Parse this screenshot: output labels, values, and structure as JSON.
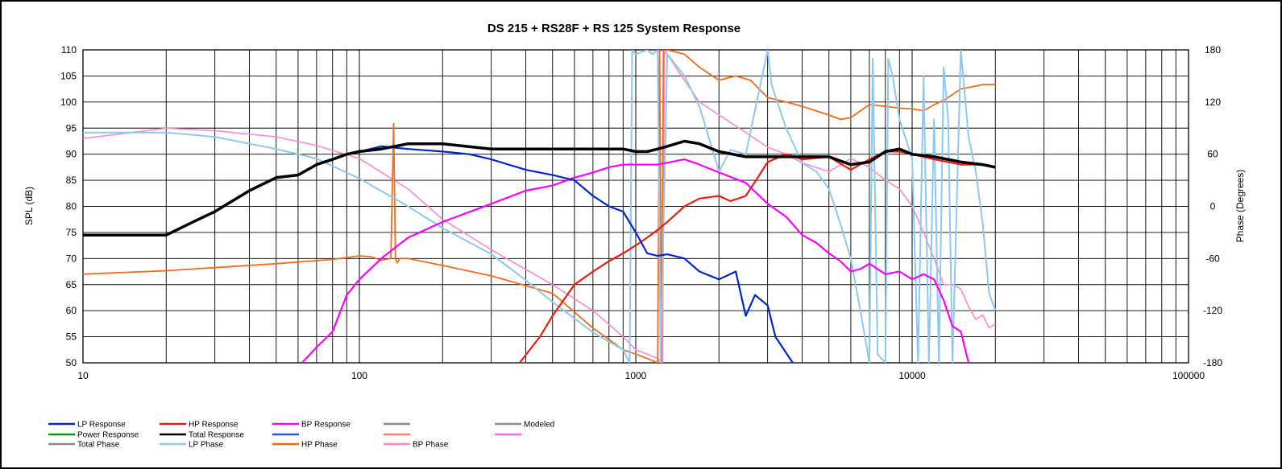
{
  "chart_data": {
    "type": "line",
    "title": "DS 215 + RS28F + RS 125  System Response",
    "xlabel": "",
    "ylabel": "SPL (dB)",
    "y2label": "Phase (Degrees)",
    "xscale": "log",
    "xlim": [
      10,
      100000
    ],
    "ylim": [
      50,
      110
    ],
    "y2lim": [
      -180,
      180
    ],
    "grid": true,
    "legend_position": "bottom",
    "x_ticks": [
      {
        "value": 10,
        "label": "10"
      },
      {
        "value": 100,
        "label": "100"
      },
      {
        "value": 1000,
        "label": "1000"
      },
      {
        "value": 10000,
        "label": "10000"
      },
      {
        "value": 100000,
        "label": "100000"
      }
    ],
    "y_ticks": [
      {
        "value": 50,
        "label": "50"
      },
      {
        "value": 55,
        "label": "55"
      },
      {
        "value": 60,
        "label": "60"
      },
      {
        "value": 65,
        "label": "65"
      },
      {
        "value": 70,
        "label": "70"
      },
      {
        "value": 75,
        "label": "75"
      },
      {
        "value": 80,
        "label": "80"
      },
      {
        "value": 85,
        "label": "85"
      },
      {
        "value": 90,
        "label": "90"
      },
      {
        "value": 95,
        "label": "95"
      },
      {
        "value": 100,
        "label": "100"
      },
      {
        "value": 105,
        "label": "105"
      },
      {
        "value": 110,
        "label": "110"
      }
    ],
    "y2_ticks": [
      {
        "value": -180,
        "label": "-180"
      },
      {
        "value": -120,
        "label": "-120"
      },
      {
        "value": -60,
        "label": "-60"
      },
      {
        "value": 0,
        "label": "0"
      },
      {
        "value": 60,
        "label": "60"
      },
      {
        "value": 120,
        "label": "120"
      },
      {
        "value": 180,
        "label": "180"
      }
    ],
    "series": [
      {
        "name": "Total Response",
        "color": "#000000",
        "width": 3.5,
        "axis": "left",
        "x": [
          10,
          20,
          25,
          30,
          40,
          50,
          60,
          70,
          80,
          90,
          100,
          120,
          150,
          200,
          300,
          400,
          500,
          600,
          700,
          800,
          900,
          1000,
          1100,
          1200,
          1300,
          1500,
          1700,
          2000,
          2500,
          3000,
          3500,
          4000,
          5000,
          6000,
          7000,
          8000,
          9000,
          10000,
          12000,
          15000,
          18000,
          20000
        ],
        "y": [
          74.5,
          74.5,
          77,
          79,
          83,
          85.5,
          86,
          88,
          89,
          90,
          90.5,
          91,
          92,
          92,
          91,
          91,
          91,
          91,
          91,
          91,
          91,
          90.5,
          90.5,
          91,
          91.5,
          92.5,
          92,
          90.5,
          89.5,
          89.5,
          89.5,
          89.5,
          89.5,
          88,
          88.5,
          90.5,
          91,
          90,
          89.5,
          88.5,
          88,
          87.5
        ]
      },
      {
        "name": "LP Response",
        "color": "#0026c8",
        "width": 2.2,
        "axis": "left",
        "x": [
          100,
          120,
          150,
          200,
          250,
          300,
          400,
          500,
          600,
          700,
          800,
          900,
          1000,
          1100,
          1200,
          1300,
          1500,
          1700,
          2000,
          2300,
          2500,
          2700,
          3000,
          3200,
          3700
        ],
        "y": [
          90.5,
          91.5,
          91,
          90.5,
          90,
          89,
          87,
          86,
          85,
          82,
          80,
          79,
          75,
          71,
          70.5,
          70.8,
          70,
          67.5,
          66,
          67.5,
          59,
          63,
          61,
          55,
          50
        ]
      },
      {
        "name": "HP Response",
        "color": "#ee1c10",
        "width": 2.2,
        "axis": "left",
        "x": [
          380,
          450,
          500,
          600,
          700,
          800,
          900,
          1000,
          1100,
          1200,
          1300,
          1500,
          1700,
          2000,
          2200,
          2500,
          2800,
          3000,
          3500,
          4000,
          5000,
          6000,
          7000,
          8000,
          9000,
          10000,
          12000,
          15000,
          18000,
          20000
        ],
        "y": [
          50,
          55,
          59,
          65,
          67.5,
          69.5,
          71,
          72.5,
          74,
          75.5,
          77,
          80,
          81.5,
          82,
          81,
          82,
          86,
          88.5,
          90,
          89,
          89.5,
          87,
          89,
          90.5,
          90.5,
          90,
          89,
          88,
          88,
          87.5
        ]
      },
      {
        "name": "BP Response",
        "color": "#ff00ff",
        "width": 2.2,
        "axis": "left",
        "x": [
          62,
          70,
          80,
          90,
          100,
          120,
          150,
          200,
          300,
          400,
          500,
          600,
          700,
          800,
          900,
          1000,
          1200,
          1500,
          1700,
          2000,
          2500,
          3000,
          3500,
          4000,
          4500,
          5000,
          5500,
          6000,
          6500,
          7000,
          8000,
          9000,
          10000,
          11000,
          12000,
          13000,
          14000,
          15000,
          16000
        ],
        "y": [
          50,
          53,
          56,
          63,
          66,
          70,
          74,
          77,
          80.5,
          83,
          84,
          85.5,
          86.5,
          87.5,
          88,
          88,
          88,
          89,
          88,
          86.5,
          84.5,
          80.5,
          78,
          74.5,
          73,
          71,
          69.5,
          67.5,
          68,
          69,
          67,
          67.5,
          66,
          67,
          66,
          62,
          57,
          56,
          50
        ]
      },
      {
        "name": "LP Phase",
        "color": "#8ec7f2",
        "width": 2,
        "axis": "right",
        "x": [
          10,
          20,
          30,
          40,
          50,
          70,
          100,
          150,
          200,
          300,
          400,
          500,
          700,
          900,
          950,
          970,
          1000,
          1100,
          1150,
          1200,
          1230,
          1300,
          1500,
          1700,
          2000,
          2200,
          2500,
          3000,
          3100,
          3500,
          4000,
          4500,
          5000,
          5500,
          6000,
          6500,
          7000,
          7200,
          7500,
          8000,
          8200,
          8500,
          9000,
          10000,
          10500,
          11000,
          11500,
          12000,
          12500,
          13000,
          13500,
          14000,
          15000,
          16000,
          17000,
          18000,
          19000,
          20000
        ],
        "y": [
          85,
          85,
          80,
          72,
          66,
          55,
          32,
          0,
          -25,
          -55,
          -85,
          -110,
          -145,
          -165,
          -180,
          180,
          175,
          180,
          175,
          180,
          -180,
          175,
          150,
          115,
          40,
          65,
          60,
          180,
          140,
          90,
          50,
          40,
          20,
          -20,
          -60,
          -120,
          -180,
          170,
          -170,
          -180,
          170,
          150,
          100,
          55,
          -180,
          150,
          -180,
          100,
          -180,
          160,
          100,
          -180,
          180,
          80,
          40,
          -20,
          -100,
          -120
        ]
      },
      {
        "name": "HP Phase",
        "color": "#f06c1c",
        "width": 1.8,
        "axis": "right",
        "x": [
          10,
          20,
          50,
          80,
          100,
          110,
          120,
          130,
          133,
          135,
          137,
          140,
          150,
          200,
          300,
          500,
          700,
          900,
          1000,
          1100,
          1200,
          1220,
          1240,
          1260,
          1280,
          1300,
          1500,
          1700,
          2000,
          2300,
          2600,
          3000,
          3500,
          4000,
          5000,
          5500,
          6000,
          6500,
          7000,
          8000,
          9000,
          10000,
          11000,
          12000,
          13000,
          15000,
          18000,
          20000
        ],
        "y": [
          -78,
          -74,
          -66,
          -61,
          -57,
          -58,
          -62,
          -60,
          95,
          -60,
          -65,
          -60,
          -60,
          -68,
          -80,
          -100,
          -140,
          -165,
          -170,
          -175,
          -180,
          180,
          -180,
          180,
          180,
          180,
          175,
          160,
          145,
          150,
          145,
          125,
          120,
          115,
          105,
          100,
          102,
          110,
          117,
          115,
          113,
          112,
          110,
          117,
          122,
          135,
          140,
          140
        ]
      },
      {
        "name": "BP Phase",
        "color": "#ff8ac8",
        "width": 1.6,
        "axis": "right",
        "x": [
          10,
          15,
          20,
          30,
          50,
          70,
          100,
          150,
          200,
          300,
          500,
          700,
          900,
          1000,
          1100,
          1200,
          1250,
          1270,
          1300,
          1500,
          1700,
          2000,
          2500,
          3000,
          3500,
          4000,
          5000,
          6000,
          7000,
          8000,
          9000,
          10000,
          11000,
          12000,
          13000,
          14000,
          15000,
          16000,
          17000,
          18000,
          19000,
          20000
        ],
        "y": [
          78,
          85,
          90,
          87,
          80,
          70,
          55,
          20,
          -15,
          -50,
          -90,
          -120,
          -150,
          -165,
          -170,
          -175,
          -180,
          180,
          175,
          145,
          120,
          105,
          85,
          68,
          60,
          50,
          40,
          55,
          45,
          30,
          20,
          0,
          -30,
          -60,
          -90,
          -90,
          -95,
          -115,
          -130,
          -125,
          -140,
          -135
        ]
      },
      {
        "name": "Power Response",
        "color": "#00a000",
        "width": 2,
        "axis": "left",
        "x": [],
        "y": []
      },
      {
        "name": "Total Phase",
        "color": "#8c8c8c",
        "width": 2,
        "axis": "right",
        "x": [],
        "y": []
      },
      {
        "name": "Modeled",
        "color": "#8c8c8c",
        "width": 2,
        "axis": "left",
        "x": [],
        "y": []
      }
    ]
  },
  "legend": {
    "rows": [
      [
        {
          "name": "LP Response",
          "color": "#0026c8"
        },
        {
          "name": "HP Response",
          "color": "#ee1c10"
        },
        {
          "name": "BP Response",
          "color": "#ff00ff"
        },
        {
          "name": "",
          "color": "#8c8c8c"
        },
        {
          "name": "Modeled",
          "color": "#8c8c8c"
        }
      ],
      [
        {
          "name": "Power Response",
          "color": "#00a000"
        },
        {
          "name": "Total Response",
          "color": "#000000"
        },
        {
          "name": "",
          "color": "#3050e0"
        },
        {
          "name": "",
          "color": "#ff8070"
        },
        {
          "name": "",
          "color": "#ff66ff"
        }
      ],
      [
        {
          "name": "Total Phase",
          "color": "#8c8c8c"
        },
        {
          "name": "LP Phase",
          "color": "#8ec7f2"
        },
        {
          "name": "HP Phase",
          "color": "#f06c1c"
        },
        {
          "name": "BP Phase",
          "color": "#ff8ac8"
        }
      ]
    ]
  }
}
